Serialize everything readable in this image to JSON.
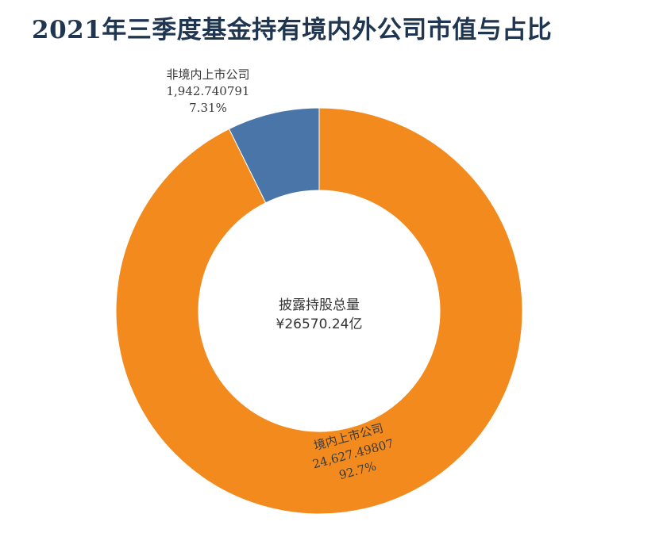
{
  "chart_data": {
    "type": "pie",
    "title": "2021年三季度基金持有境内外公司市值与占比",
    "center_label": "披露持股总量",
    "center_value": "¥26570.24亿",
    "slices": [
      {
        "name": "非境内上市公司",
        "value": 1942.740791,
        "value_label": "1,942.740791",
        "percent_label": "7.31%",
        "color": "#4A75A8"
      },
      {
        "name": "境内上市公司",
        "value": 24627.49807,
        "value_label": "24,627.49807",
        "percent_label": "92.7%",
        "color": "#F28A1E"
      }
    ]
  }
}
